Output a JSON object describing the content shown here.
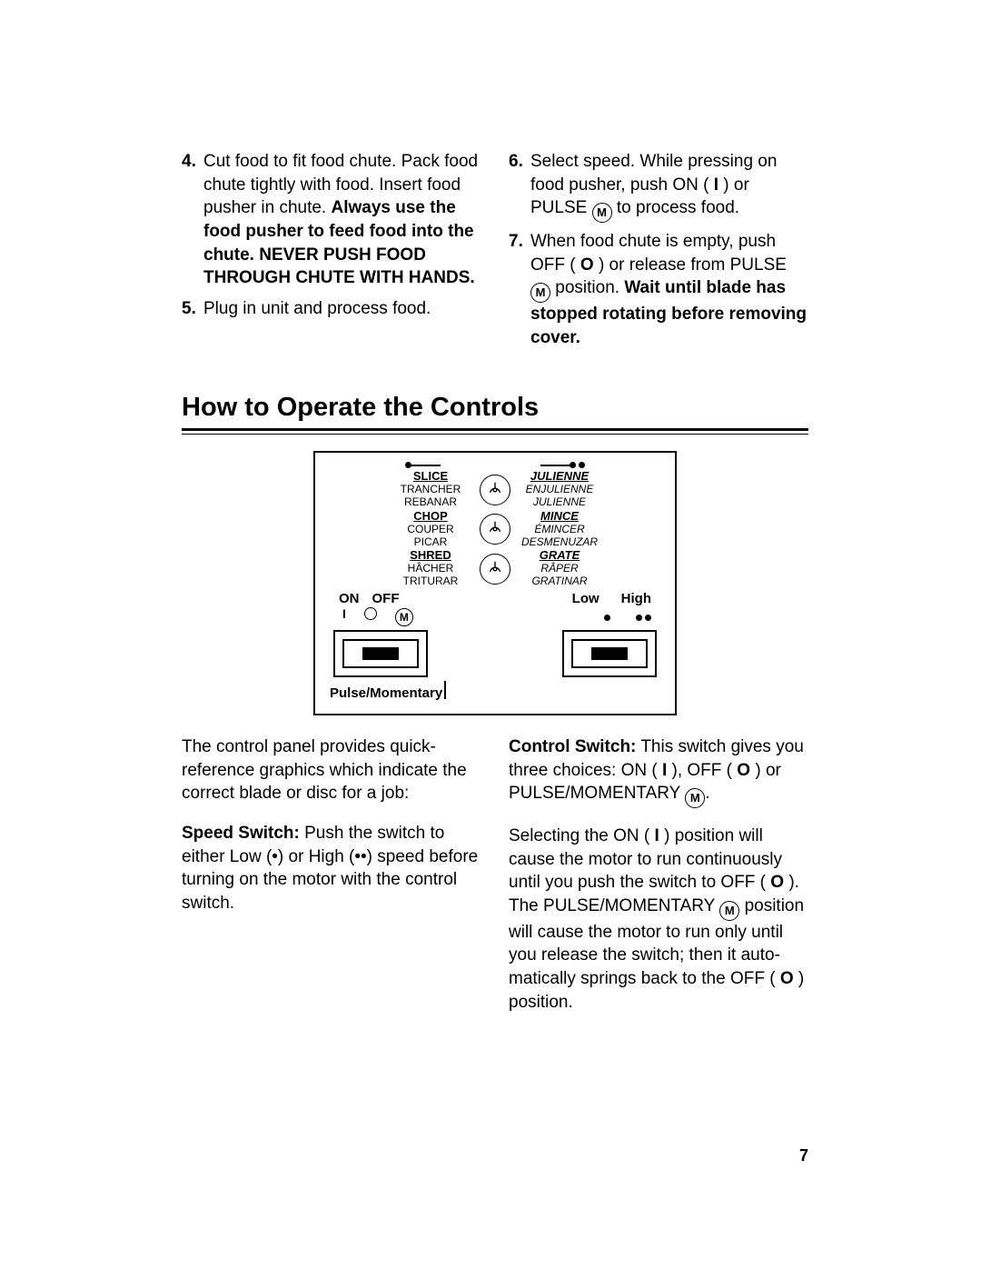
{
  "top": {
    "left": {
      "items": [
        {
          "num": "4.",
          "html": "Cut food to fit food chute. Pack food chute tightly with food. Insert food pusher in chute. <b>Always use the food pusher to feed food into the chute. NEVER PUSH FOOD THROUGH CHUTE WITH HANDS.</b>"
        },
        {
          "num": "5.",
          "html": "Plug in unit and process food."
        }
      ]
    },
    "right": {
      "items": [
        {
          "num": "6.",
          "html": "Select speed. While pressing on food pusher, push ON (&nbsp;<b>I</b>&nbsp;) or PULSE <span class='circMb'>M</span> to process food."
        },
        {
          "num": "7.",
          "html": "When food chute is empty, push OFF (&nbsp;<b>O</b>&nbsp;) or release from PULSE <span class='circMb'>M</span> position. <b>Wait until blade has stopped rotating before removing cover.</b>"
        }
      ]
    }
  },
  "heading": "How to Operate the Controls",
  "controls_diagram": {
    "rows": [
      {
        "left": [
          "SLICE",
          "TRANCHER",
          "REBANAR"
        ],
        "right": [
          "JULIENNE",
          "ENJULIENNE",
          "JULIENNE"
        ]
      },
      {
        "left": [
          "CHOP",
          "COUPER",
          "PICAR"
        ],
        "right": [
          "MINCE",
          "ÉMINCER",
          "DESMENUZAR"
        ]
      },
      {
        "left": [
          "SHRED",
          "HÂCHER",
          "TRITURAR"
        ],
        "right": [
          "GRATE",
          "RÂPER",
          "GRATINAR"
        ]
      }
    ],
    "labels": {
      "on": "ON",
      "off": "OFF",
      "low": "Low",
      "high": "High"
    },
    "pulse_label": "Pulse/Momentary"
  },
  "bottom": {
    "left_paras": [
      "The control panel provides quick-reference graphics which indicate the correct blade or disc for a job:",
      "<b>Speed Switch:</b> Push the switch to either Low (•) or High (••) speed before turning on the motor with the control switch."
    ],
    "right_paras": [
      "<b>Control Switch:</b> This switch gives you three choices: ON (&nbsp;<b>I</b>&nbsp;), OFF (&nbsp;<b>O</b>&nbsp;) or PULSE/MOMENTARY <span class='circMb'>M</span>.",
      "Selecting the ON (&nbsp;<b>I</b>&nbsp;) position will cause the motor to run continuously until you push the switch to OFF (&nbsp;<b>O</b>&nbsp;). The PULSE/MOMENTARY <span class='circMb'>M</span> position will cause the motor to run only until you release the switch; then it auto-matically springs back to the OFF (&nbsp;<b>O</b>&nbsp;) position."
    ]
  },
  "page_number": "7"
}
